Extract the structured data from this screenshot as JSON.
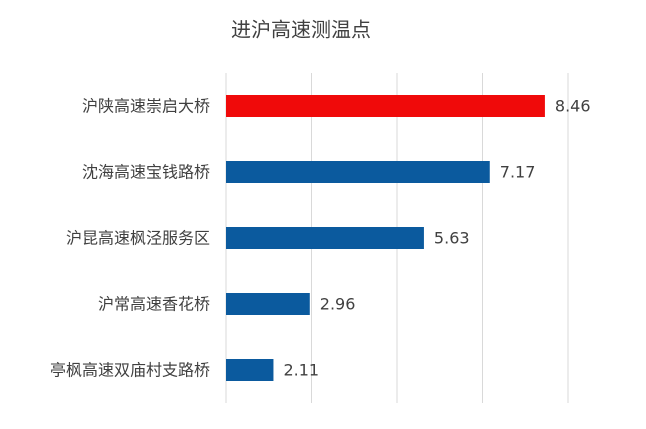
{
  "chart_data": {
    "type": "hbar",
    "title": "进沪高速测温点",
    "categories": [
      "沪陕高速崇启大桥",
      "沈海高速宝钱路桥",
      "沪昆高速枫泾服务区",
      "沪常高速香花桥",
      "亭枫高速双庙村支路桥"
    ],
    "values": [
      8.46,
      7.17,
      5.63,
      2.96,
      2.11
    ],
    "colors": [
      "#f00a0a",
      "#0b5a9e",
      "#0b5a9e",
      "#0b5a9e",
      "#0b5a9e"
    ],
    "xlim": [
      1,
      9
    ],
    "xticks": [
      1,
      3,
      5,
      7,
      9
    ],
    "grid": true
  }
}
